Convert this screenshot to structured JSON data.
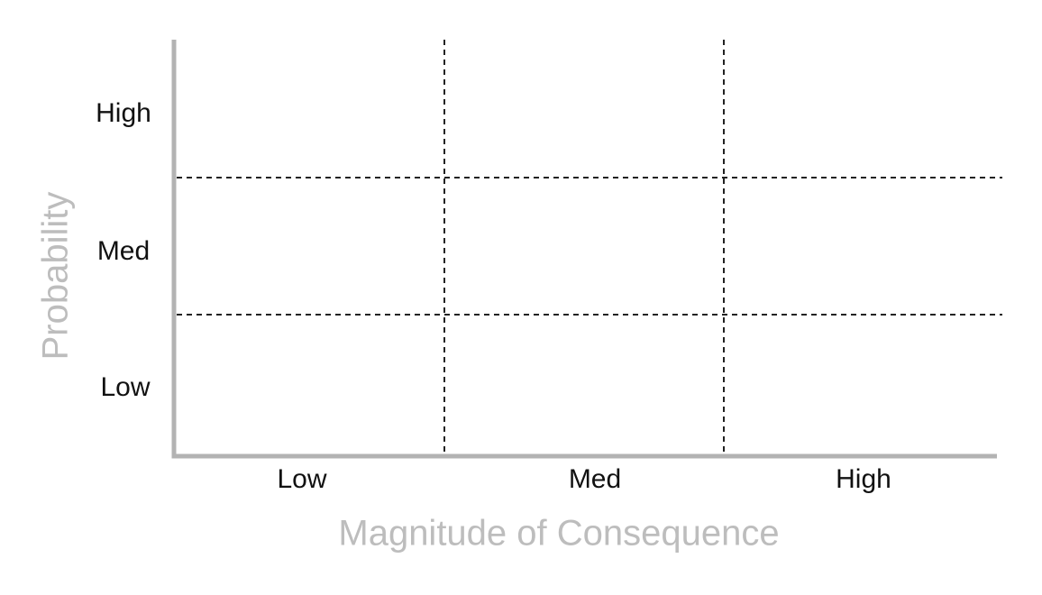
{
  "x_axis": {
    "label": "Magnitude of Consequence",
    "categories": [
      "Low",
      "Med",
      "High"
    ]
  },
  "y_axis": {
    "label": "Probability",
    "categories": [
      "High",
      "Med",
      "Low"
    ]
  }
}
